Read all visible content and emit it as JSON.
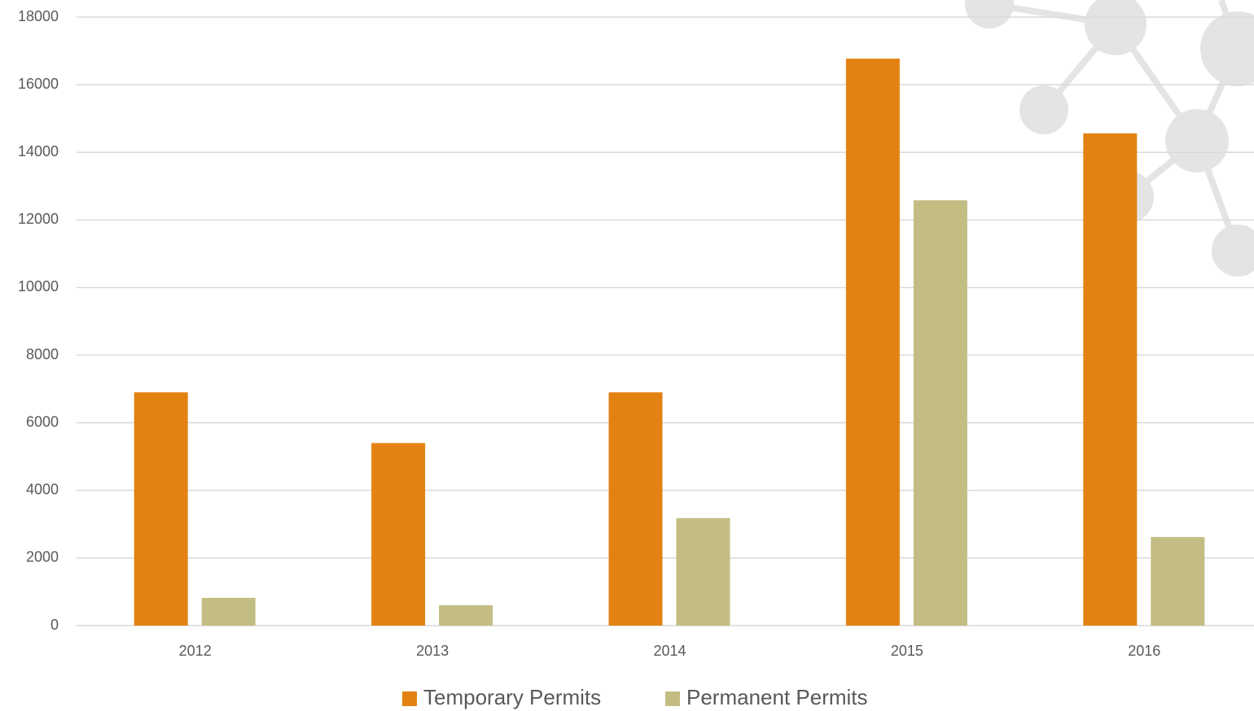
{
  "chart_data": {
    "type": "bar",
    "categories": [
      "2012",
      "2013",
      "2014",
      "2015",
      "2016"
    ],
    "series": [
      {
        "name": "Temporary Permits",
        "color": "#e38213",
        "values": [
          6900,
          5400,
          6900,
          16770,
          14560
        ]
      },
      {
        "name": "Permanent Permits",
        "color": "#c3bd83",
        "values": [
          820,
          600,
          3180,
          12580,
          2620
        ]
      }
    ],
    "ylim": [
      0,
      18000
    ],
    "yticks": [
      0,
      2000,
      4000,
      6000,
      8000,
      10000,
      12000,
      14000,
      16000,
      18000
    ],
    "grid": true,
    "legend": "bottom"
  }
}
